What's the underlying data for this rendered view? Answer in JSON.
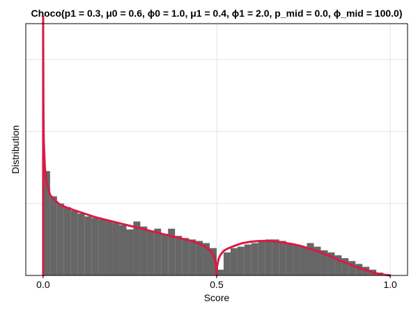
{
  "chart_data": {
    "type": "bar",
    "title": "Choco(p1 = 0.3, μ0 = 0.6, ϕ0 = 1.0, μ1 = 0.4, ϕ1 = 2.0, p_mid = 0.0, ϕ_mid = 100.0)",
    "xlabel": "Score",
    "ylabel": "Distribution",
    "xlim": [
      -0.05,
      1.05
    ],
    "ylim": [
      0,
      3.5
    ],
    "x_ticks": [
      "0.0",
      "0.5",
      "1.0"
    ],
    "x_tick_values": [
      0.0,
      0.5,
      1.0
    ],
    "y_grid_values": [
      1,
      2,
      3
    ],
    "grid": true,
    "legend": "none",
    "histogram": {
      "bin_width": 0.02,
      "bin_starts": [
        0.0,
        0.02,
        0.04,
        0.06,
        0.08,
        0.1,
        0.12,
        0.14,
        0.16,
        0.18,
        0.2,
        0.22,
        0.24,
        0.26,
        0.28,
        0.3,
        0.32,
        0.34,
        0.36,
        0.38,
        0.4,
        0.42,
        0.44,
        0.46,
        0.48,
        0.5,
        0.52,
        0.54,
        0.56,
        0.58,
        0.6,
        0.62,
        0.64,
        0.66,
        0.68,
        0.7,
        0.72,
        0.74,
        0.76,
        0.78,
        0.8,
        0.82,
        0.84,
        0.86,
        0.88,
        0.9,
        0.92,
        0.94,
        0.96,
        0.98
      ],
      "values": [
        1.45,
        1.1,
        1.0,
        0.95,
        0.9,
        0.86,
        0.82,
        0.8,
        0.78,
        0.76,
        0.73,
        0.7,
        0.64,
        0.75,
        0.68,
        0.62,
        0.65,
        0.58,
        0.65,
        0.55,
        0.52,
        0.5,
        0.48,
        0.45,
        0.38,
        0.08,
        0.32,
        0.38,
        0.4,
        0.43,
        0.45,
        0.48,
        0.5,
        0.5,
        0.48,
        0.45,
        0.43,
        0.4,
        0.45,
        0.4,
        0.35,
        0.32,
        0.28,
        0.24,
        0.2,
        0.16,
        0.12,
        0.08,
        0.04,
        0.02
      ],
      "color": "#666666"
    },
    "density_curve": {
      "color": "#d81b43",
      "x": [
        0.0,
        0.0,
        0.001,
        0.002,
        0.005,
        0.01,
        0.02,
        0.03,
        0.05,
        0.075,
        0.1,
        0.125,
        0.15,
        0.175,
        0.2,
        0.225,
        0.25,
        0.275,
        0.3,
        0.325,
        0.35,
        0.375,
        0.4,
        0.425,
        0.45,
        0.47,
        0.48,
        0.49,
        0.495,
        0.499,
        0.5,
        0.501,
        0.505,
        0.51,
        0.52,
        0.53,
        0.55,
        0.575,
        0.6,
        0.625,
        0.65,
        0.675,
        0.7,
        0.725,
        0.75,
        0.775,
        0.8,
        0.825,
        0.85,
        0.875,
        0.9,
        0.925,
        0.95,
        0.975,
        1.0
      ],
      "y": [
        0,
        3.6,
        2.2,
        1.85,
        1.5,
        1.3,
        1.12,
        1.06,
        0.98,
        0.93,
        0.89,
        0.85,
        0.81,
        0.78,
        0.75,
        0.72,
        0.69,
        0.66,
        0.63,
        0.6,
        0.57,
        0.54,
        0.51,
        0.48,
        0.44,
        0.39,
        0.35,
        0.29,
        0.23,
        0.12,
        0.0,
        0.12,
        0.22,
        0.28,
        0.34,
        0.37,
        0.41,
        0.45,
        0.47,
        0.48,
        0.48,
        0.47,
        0.45,
        0.43,
        0.4,
        0.36,
        0.32,
        0.27,
        0.22,
        0.17,
        0.12,
        0.08,
        0.04,
        0.015,
        0.0
      ]
    }
  }
}
